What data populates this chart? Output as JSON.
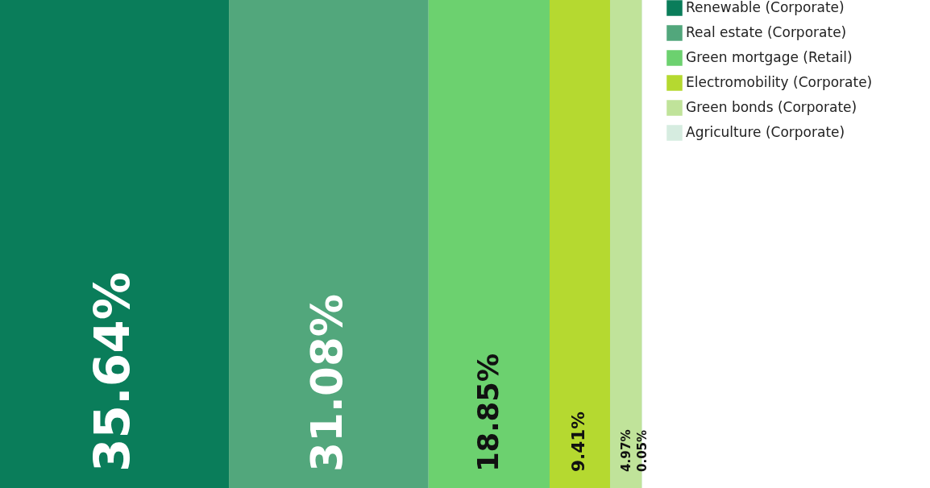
{
  "chart_data": {
    "type": "bar",
    "orientation": "horizontal",
    "stacked": true,
    "categories": [
      null
    ],
    "legend": "right",
    "series": [
      {
        "name": "Renewable (Corporate)",
        "color": "#0a7d5a",
        "values": [
          35.64
        ],
        "value_labels": [
          "35.64%"
        ]
      },
      {
        "name": "Real estate (Corporate)",
        "color": "#52a77c",
        "values": [
          31.08
        ],
        "value_labels": [
          "31.08%"
        ]
      },
      {
        "name": "Green mortgage (Retail)",
        "color": "#6cd16f",
        "values": [
          18.85
        ],
        "value_labels": [
          "18.85%"
        ]
      },
      {
        "name": "Electromobility (Corporate)",
        "color": "#b5d930",
        "values": [
          9.41
        ],
        "value_labels": [
          "9.41%"
        ]
      },
      {
        "name": "Green bonds (Corporate)",
        "color": "#c0e39a",
        "values": [
          4.97
        ],
        "value_labels": [
          "4.97%"
        ]
      },
      {
        "name": "Agriculture (Corporate)",
        "color": "#d6ece0",
        "values": [
          0.05
        ],
        "value_labels": [
          "0.05%"
        ]
      }
    ]
  }
}
